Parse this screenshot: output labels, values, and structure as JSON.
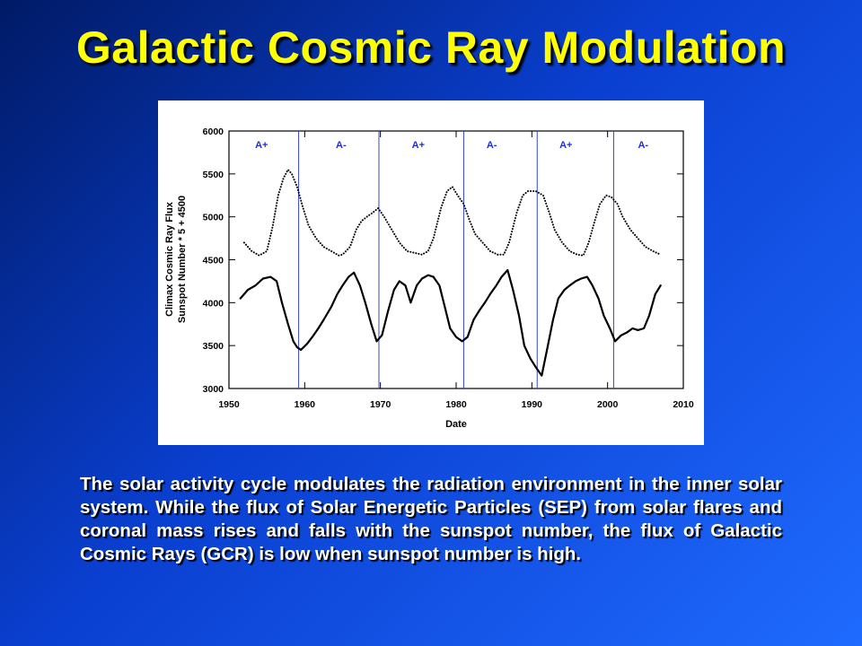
{
  "slide": {
    "title": "Galactic Cosmic Ray Modulation",
    "caption": "The solar activity cycle modulates the radiation environment in the inner solar system. While the flux of Solar Energetic Particles (SEP) from solar flares and coronal mass rises and falls with the sunspot number, the flux of Galactic Cosmic Rays (GCR) is low when sunspot number is high.",
    "title_color": "#ffff00",
    "caption_color": "#ffffff"
  },
  "chart_data": {
    "type": "line",
    "title": "",
    "xlabel": "Date",
    "ylabel_lines": [
      "Climax Cosmic Ray Flux",
      "Sunspot Number * 5 + 4500"
    ],
    "xlim": [
      1950,
      2010
    ],
    "ylim": [
      3000,
      6000
    ],
    "x_ticks": [
      1950,
      1960,
      1970,
      1980,
      1990,
      2000,
      2010
    ],
    "y_ticks": [
      3000,
      3500,
      4000,
      4500,
      5000,
      5500,
      6000
    ],
    "grid": false,
    "polarity_markers": [
      1959.2,
      1969.8,
      1981.0,
      1990.7,
      2000.8
    ],
    "polarity_labels": [
      {
        "x": 1954.3,
        "text": "A+"
      },
      {
        "x": 1964.8,
        "text": "A-"
      },
      {
        "x": 1975.0,
        "text": "A+"
      },
      {
        "x": 1984.7,
        "text": "A-"
      },
      {
        "x": 1994.5,
        "text": "A+"
      },
      {
        "x": 2004.7,
        "text": "A-"
      }
    ],
    "marker_color": "#3344cc",
    "label_color": "#1a2fd6",
    "series": [
      {
        "style": "dotted",
        "x": [
          1952.0,
          1953.0,
          1954.0,
          1955.0,
          1955.8,
          1956.5,
          1957.2,
          1957.8,
          1958.3,
          1959.0,
          1959.8,
          1960.5,
          1961.5,
          1962.5,
          1963.5,
          1964.5,
          1965.0,
          1966.0,
          1966.8,
          1967.5,
          1968.2,
          1969.0,
          1969.7,
          1970.5,
          1971.5,
          1972.5,
          1973.5,
          1974.5,
          1975.5,
          1976.3,
          1977.0,
          1978.0,
          1978.8,
          1979.5,
          1980.2,
          1981.0,
          1981.8,
          1982.5,
          1983.5,
          1984.5,
          1985.5,
          1986.3,
          1987.0,
          1988.0,
          1988.8,
          1989.5,
          1990.5,
          1991.5,
          1992.3,
          1993.0,
          1994.0,
          1995.0,
          1996.0,
          1996.8,
          1997.5,
          1998.3,
          1999.0,
          1999.8,
          2000.5,
          2001.3,
          2002.0,
          2003.0,
          2004.0,
          2005.0,
          2006.0,
          2007.0
        ],
        "y": [
          4700,
          4600,
          4550,
          4600,
          4900,
          5250,
          5450,
          5550,
          5500,
          5350,
          5100,
          4900,
          4750,
          4650,
          4600,
          4550,
          4560,
          4650,
          4850,
          4950,
          5000,
          5050,
          5100,
          5000,
          4850,
          4700,
          4600,
          4580,
          4560,
          4600,
          4750,
          5100,
          5300,
          5350,
          5250,
          5150,
          4950,
          4800,
          4700,
          4600,
          4560,
          4560,
          4700,
          5050,
          5250,
          5300,
          5300,
          5250,
          5050,
          4850,
          4700,
          4600,
          4560,
          4550,
          4700,
          4950,
          5150,
          5250,
          5230,
          5150,
          5000,
          4850,
          4750,
          4650,
          4600,
          4560
        ]
      },
      {
        "style": "solid",
        "x": [
          1951.5,
          1952.5,
          1953.5,
          1954.5,
          1955.5,
          1956.3,
          1957.0,
          1957.8,
          1958.5,
          1959.0,
          1959.5,
          1960.3,
          1961.0,
          1961.8,
          1962.5,
          1963.5,
          1964.3,
          1965.0,
          1965.8,
          1966.5,
          1967.3,
          1968.0,
          1968.8,
          1969.5,
          1970.2,
          1971.0,
          1971.8,
          1972.5,
          1973.3,
          1974.0,
          1974.8,
          1975.5,
          1976.3,
          1977.0,
          1977.8,
          1978.5,
          1979.2,
          1980.0,
          1980.8,
          1981.5,
          1982.3,
          1983.0,
          1983.8,
          1984.5,
          1985.3,
          1986.0,
          1986.8,
          1987.5,
          1988.3,
          1989.0,
          1989.8,
          1990.5,
          1991.3,
          1992.0,
          1992.8,
          1993.5,
          1994.3,
          1995.0,
          1995.8,
          1996.5,
          1997.3,
          1998.0,
          1998.8,
          1999.5,
          2000.3,
          2001.0,
          2001.8,
          2002.5,
          2003.3,
          2004.0,
          2004.8,
          2005.5,
          2006.3,
          2007.0
        ],
        "y": [
          4050,
          4150,
          4200,
          4280,
          4300,
          4250,
          4000,
          3750,
          3550,
          3480,
          3450,
          3520,
          3600,
          3700,
          3800,
          3950,
          4100,
          4200,
          4300,
          4350,
          4200,
          4000,
          3750,
          3550,
          3620,
          3900,
          4150,
          4250,
          4200,
          4000,
          4200,
          4280,
          4320,
          4300,
          4200,
          3950,
          3700,
          3600,
          3550,
          3600,
          3800,
          3900,
          4000,
          4100,
          4200,
          4300,
          4380,
          4150,
          3850,
          3500,
          3350,
          3250,
          3150,
          3450,
          3800,
          4050,
          4150,
          4200,
          4250,
          4280,
          4300,
          4200,
          4050,
          3850,
          3700,
          3550,
          3620,
          3650,
          3700,
          3680,
          3700,
          3850,
          4100,
          4200
        ]
      }
    ]
  }
}
